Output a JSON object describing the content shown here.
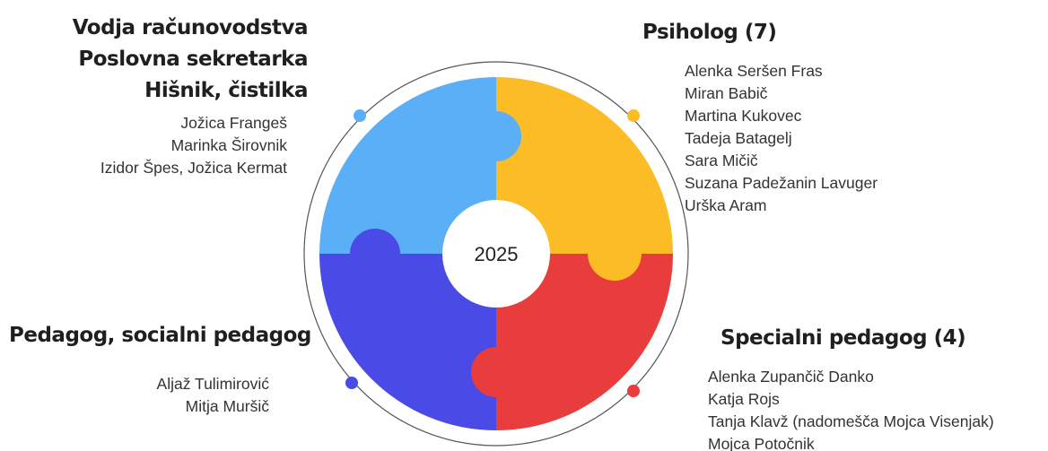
{
  "center": "2025",
  "groups": [
    {
      "titles": [
        "Vodja računovodstva",
        "Poslovna sekretarka",
        "Hišnik, čistilka"
      ],
      "members": [
        "Jožica Frangeš",
        "Marinka Širovnik",
        "Izidor Špes, Jožica Kermat"
      ]
    },
    {
      "titles": [
        "Psiholog (7)"
      ],
      "members": [
        "Alenka Seršen Fras",
        "Miran Babič",
        "Martina Kukovec",
        "Tadeja Batagelj",
        "Sara Mičič",
        "Suzana Padežanin Lavuger",
        "Urška Aram"
      ]
    },
    {
      "titles": [
        "Pedagog, socialni pedagog"
      ],
      "members": [
        "Aljaž Tulimirović",
        "Mitja Muršič"
      ]
    },
    {
      "titles": [
        "Specialni pedagog (4)"
      ],
      "members": [
        "Alenka Zupančič Danko",
        "Katja Rojs",
        "Tanja Klavž (nadomešča Mojca Visenjak)",
        "Mojca Potočnik"
      ]
    }
  ]
}
